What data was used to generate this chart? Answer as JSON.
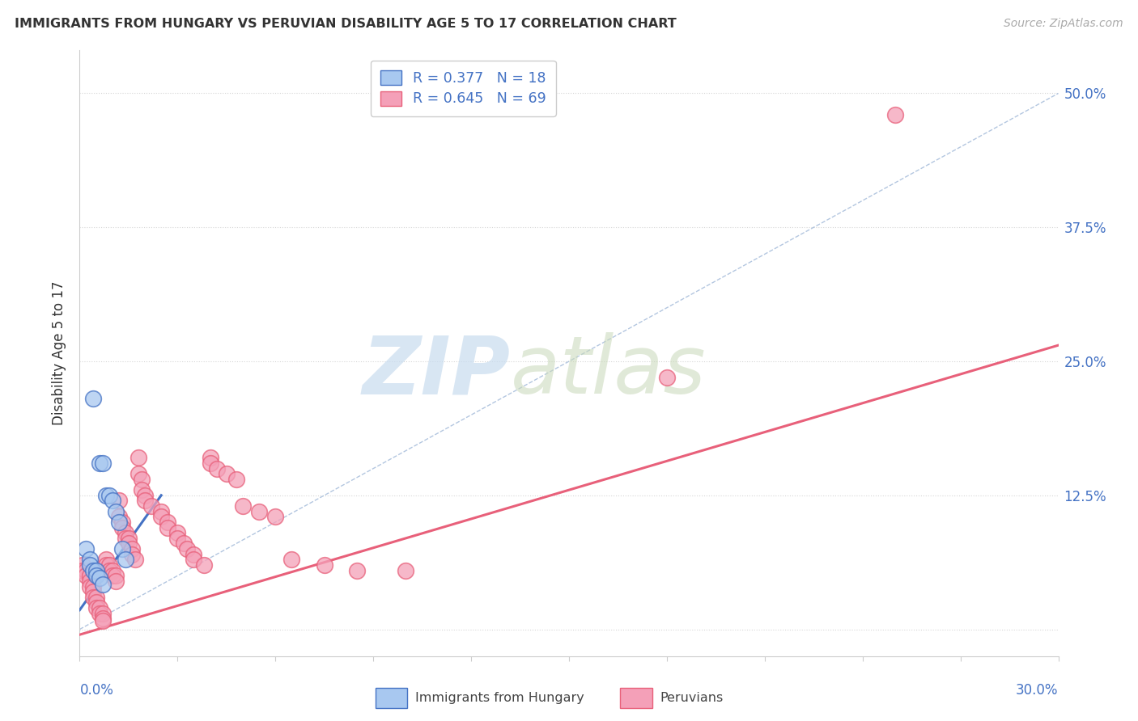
{
  "title": "IMMIGRANTS FROM HUNGARY VS PERUVIAN DISABILITY AGE 5 TO 17 CORRELATION CHART",
  "source": "Source: ZipAtlas.com",
  "ylabel": "Disability Age 5 to 17",
  "ytick_labels": [
    "",
    "12.5%",
    "25.0%",
    "37.5%",
    "50.0%"
  ],
  "ytick_values": [
    0.0,
    0.125,
    0.25,
    0.375,
    0.5
  ],
  "xlim": [
    0.0,
    0.3
  ],
  "ylim": [
    -0.025,
    0.54
  ],
  "hungary_color": "#A8C8F0",
  "peruvian_color": "#F4A0B8",
  "hungary_line_color": "#4472C4",
  "peruvian_line_color": "#E8607A",
  "diagonal_color": "#A0B8D8",
  "hungary_points_x": [
    0.004,
    0.006,
    0.007,
    0.008,
    0.009,
    0.01,
    0.011,
    0.012,
    0.013,
    0.014,
    0.002,
    0.003,
    0.003,
    0.004,
    0.005,
    0.005,
    0.006,
    0.007
  ],
  "hungary_points_y": [
    0.215,
    0.155,
    0.155,
    0.125,
    0.125,
    0.12,
    0.11,
    0.1,
    0.075,
    0.065,
    0.075,
    0.065,
    0.06,
    0.055,
    0.055,
    0.05,
    0.048,
    0.042
  ],
  "peruvian_points_x": [
    0.001,
    0.001,
    0.002,
    0.002,
    0.003,
    0.003,
    0.003,
    0.004,
    0.004,
    0.004,
    0.005,
    0.005,
    0.005,
    0.006,
    0.006,
    0.007,
    0.007,
    0.007,
    0.008,
    0.008,
    0.009,
    0.009,
    0.01,
    0.01,
    0.011,
    0.011,
    0.012,
    0.012,
    0.013,
    0.013,
    0.014,
    0.014,
    0.015,
    0.015,
    0.016,
    0.016,
    0.017,
    0.018,
    0.018,
    0.019,
    0.019,
    0.02,
    0.02,
    0.022,
    0.025,
    0.025,
    0.027,
    0.027,
    0.03,
    0.03,
    0.032,
    0.033,
    0.035,
    0.035,
    0.038,
    0.04,
    0.04,
    0.042,
    0.045,
    0.048,
    0.05,
    0.055,
    0.06,
    0.065,
    0.075,
    0.085,
    0.1,
    0.18,
    0.25
  ],
  "peruvian_points_y": [
    0.06,
    0.055,
    0.055,
    0.05,
    0.05,
    0.045,
    0.04,
    0.04,
    0.035,
    0.03,
    0.03,
    0.025,
    0.02,
    0.02,
    0.015,
    0.015,
    0.01,
    0.008,
    0.065,
    0.06,
    0.06,
    0.055,
    0.055,
    0.05,
    0.05,
    0.045,
    0.12,
    0.105,
    0.1,
    0.095,
    0.09,
    0.085,
    0.085,
    0.08,
    0.075,
    0.07,
    0.065,
    0.16,
    0.145,
    0.14,
    0.13,
    0.125,
    0.12,
    0.115,
    0.11,
    0.105,
    0.1,
    0.095,
    0.09,
    0.085,
    0.08,
    0.075,
    0.07,
    0.065,
    0.06,
    0.16,
    0.155,
    0.15,
    0.145,
    0.14,
    0.115,
    0.11,
    0.105,
    0.065,
    0.06,
    0.055,
    0.055,
    0.235,
    0.48
  ],
  "hungary_line_x": [
    0.0,
    0.025
  ],
  "hungary_line_y": [
    0.018,
    0.125
  ],
  "peruvian_line_x": [
    0.0,
    0.3
  ],
  "peruvian_line_y": [
    -0.005,
    0.265
  ],
  "diagonal_line_x": [
    0.0,
    0.3
  ],
  "diagonal_line_y": [
    0.0,
    0.5
  ],
  "background_color": "#FFFFFF",
  "grid_color": "#CCCCCC"
}
